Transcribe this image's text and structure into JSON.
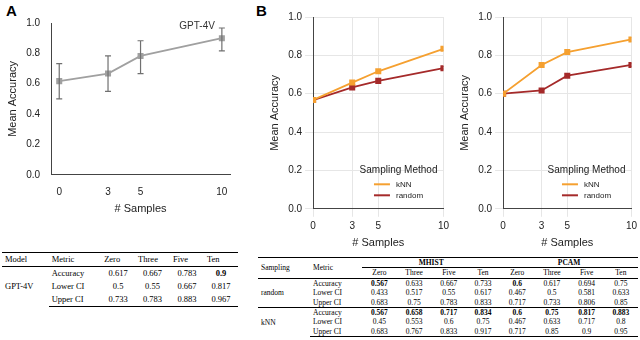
{
  "panel_labels": [
    "A",
    "B"
  ],
  "chart_data": [
    {
      "type": "line",
      "x_label": "# Samples",
      "y_label": "Mean Accuracy",
      "x": [
        0,
        3,
        5,
        10
      ],
      "values": [
        0.617,
        0.667,
        0.783,
        0.9
      ],
      "error_low": [
        0.5,
        0.55,
        0.667,
        0.817
      ],
      "error_high": [
        0.733,
        0.783,
        0.883,
        0.967
      ],
      "color": "#a0a0a0",
      "marker": "square",
      "annotation": "GPT-4V",
      "xlim": [
        -0.5,
        10.5
      ],
      "xticks": [
        0,
        3,
        5,
        10
      ],
      "ylim": [
        0,
        1
      ],
      "yticks": [
        {
          "value": 0,
          "label": "0.0"
        },
        0.2,
        0.4,
        0.6,
        0.8,
        {
          "value": 1,
          "label": "1.0"
        }
      ],
      "grid": false
    },
    {
      "type": "line",
      "x_label": "# Samples",
      "y_label": "Mean Accuracy",
      "x": [
        0,
        3,
        5,
        10
      ],
      "series": [
        {
          "name": "kNN",
          "color": "#f5a030",
          "marker": "square",
          "values": [
            0.567,
            0.658,
            0.717,
            0.834
          ]
        },
        {
          "name": "random",
          "color": "#a52a2a",
          "marker": "square",
          "values": [
            0.567,
            0.633,
            0.667,
            0.733
          ]
        }
      ],
      "legend": "lower-right",
      "legend_title": "Sampling Method",
      "xlim": [
        0,
        10
      ],
      "xticks": [
        0,
        3,
        5,
        10
      ],
      "ylim": [
        0,
        1
      ],
      "yticks": [
        {
          "value": 0,
          "label": "0.0"
        },
        0.2,
        0.4,
        0.6,
        0.8,
        {
          "value": 1,
          "label": "1.0"
        }
      ],
      "grid": true
    },
    {
      "type": "line",
      "x_label": "# Samples",
      "y_label": "Mean Accuracy",
      "x": [
        0,
        3,
        5,
        10
      ],
      "series": [
        {
          "name": "kNN",
          "color": "#f5a030",
          "marker": "square",
          "values": [
            0.6,
            0.75,
            0.817,
            0.883
          ]
        },
        {
          "name": "random",
          "color": "#a52a2a",
          "marker": "square",
          "values": [
            0.6,
            0.617,
            0.694,
            0.75
          ]
        }
      ],
      "legend": "lower-right",
      "legend_title": "Sampling Method",
      "xlim": [
        0,
        10
      ],
      "xticks": [
        0,
        3,
        5,
        10
      ],
      "ylim": [
        0,
        1
      ],
      "yticks": [
        {
          "value": 0,
          "label": "0.0"
        },
        0.2,
        0.4,
        0.6,
        0.8,
        {
          "value": 1,
          "label": "1.0"
        }
      ],
      "grid": true
    }
  ],
  "tables": [
    {
      "columns": [
        "Model",
        "Metric",
        "Zero",
        "Three",
        "Five",
        "Ten"
      ],
      "blocks": [
        {
          "label": "GPT-4V",
          "rows": [
            [
              "Accuracy",
              0.617,
              0.667,
              0.783,
              {
                "value": 0.9,
                "bold": true
              }
            ],
            [
              "Lower CI",
              0.5,
              0.55,
              0.667,
              0.817
            ],
            [
              "Upper CI",
              0.733,
              0.783,
              0.883,
              0.967
            ]
          ]
        }
      ]
    },
    {
      "columns": [
        "Sampling",
        "Metric"
      ],
      "groups": [
        {
          "name": "MHIST",
          "columns": [
            "Zero",
            "Three",
            "Five",
            "Ten"
          ]
        },
        {
          "name": "PCAM",
          "columns": [
            "Zero",
            "Three",
            "Five",
            "Ten"
          ]
        }
      ],
      "blocks": [
        {
          "label": "random",
          "rows": [
            [
              "Accuracy",
              {
                "value": 0.567,
                "bold": true
              },
              0.633,
              0.667,
              0.733,
              {
                "value": 0.6,
                "bold": true
              },
              0.617,
              0.694,
              0.75
            ],
            [
              "Lower CI",
              0.433,
              0.517,
              0.55,
              0.617,
              0.467,
              0.5,
              0.581,
              0.633
            ],
            [
              "Upper CI",
              0.683,
              0.75,
              0.783,
              0.833,
              0.717,
              0.733,
              0.806,
              0.85
            ]
          ]
        },
        {
          "label": "kNN",
          "rows": [
            [
              "Accuracy",
              {
                "value": 0.567,
                "bold": true
              },
              {
                "value": 0.658,
                "bold": true
              },
              {
                "value": 0.717,
                "bold": true
              },
              {
                "value": 0.834,
                "bold": true
              },
              {
                "value": 0.6,
                "bold": true
              },
              {
                "value": 0.75,
                "bold": true
              },
              {
                "value": 0.817,
                "bold": true
              },
              {
                "value": 0.883,
                "bold": true
              }
            ],
            [
              "Lower CI",
              0.45,
              0.553,
              0.6,
              0.75,
              0.467,
              0.633,
              0.717,
              0.8
            ],
            [
              "Upper CI",
              0.683,
              0.767,
              0.833,
              0.917,
              0.717,
              0.85,
              0.9,
              0.95
            ]
          ]
        }
      ]
    }
  ]
}
